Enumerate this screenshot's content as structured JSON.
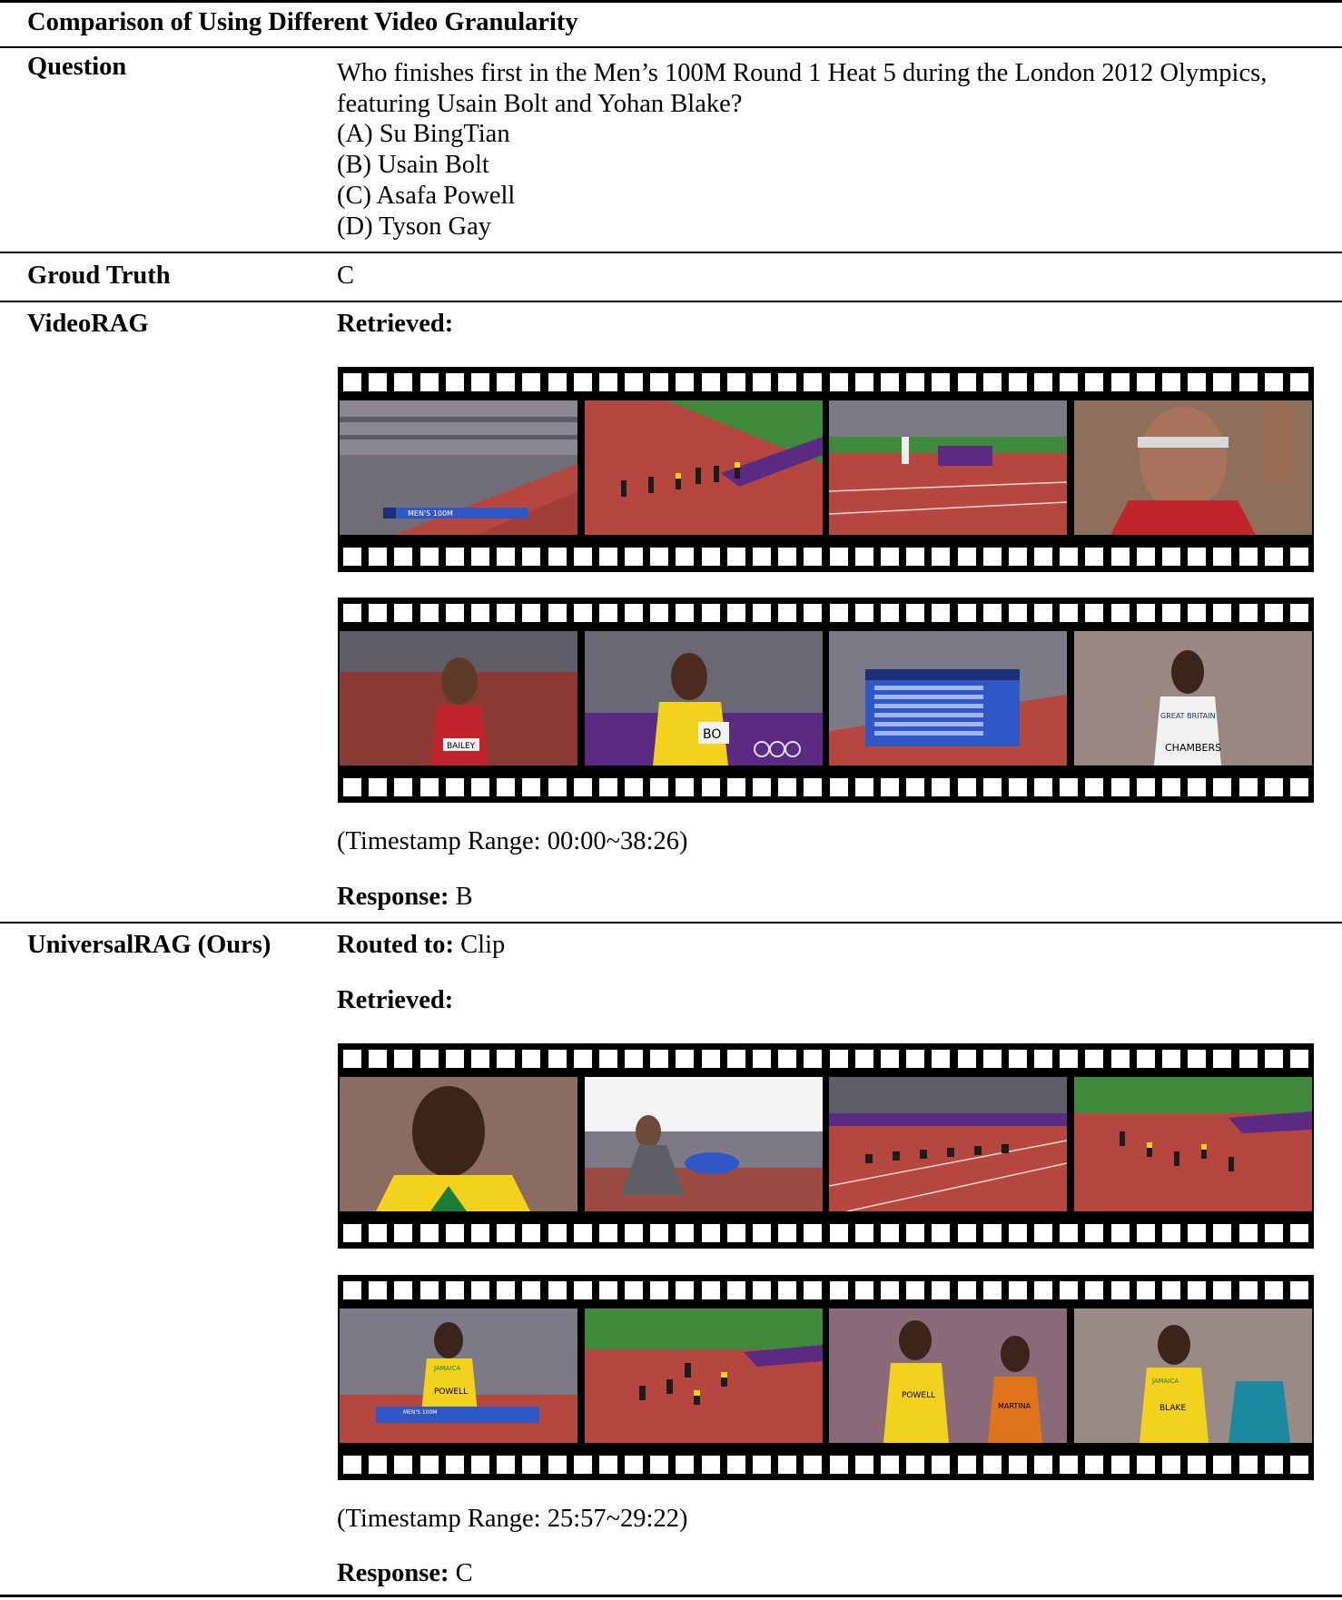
{
  "caption": "Comparison of Using Different Video Granularity",
  "question": {
    "label": "Question",
    "lines": [
      "Who finishes first in the Men’s 100M Round 1 Heat 5 during the London 2012 Olympics,",
      "featuring Usain Bolt and Yohan Blake?",
      "(A) Su BingTian",
      "(B) Usain Bolt",
      "(C) Asafa Powell",
      "(D) Tyson Gay"
    ]
  },
  "ground_truth": {
    "label": "Groud Truth",
    "value": "C"
  },
  "videorag": {
    "label": "VideoRAG",
    "retrieved_label": "Retrieved:",
    "timestamp": "(Timestamp Range: 00:00~38:26)",
    "response_label": "Response:",
    "response_value": "B"
  },
  "universalrag": {
    "label": "UniversalRAG (Ours)",
    "routed_label": "Routed to:",
    "routed_value": "Clip",
    "retrieved_label": "Retrieved:",
    "timestamp": "(Timestamp Range: 25:57~29:22)",
    "response_label": "Response:",
    "response_value": "C"
  },
  "frame_text": {
    "graphic_title": "MEN'S 100M",
    "athletes": [
      "BAILEY",
      "BO",
      "GREAT BRITAIN",
      "CHAMBERS",
      "JAMAICA",
      "POWELL",
      "MARTINA",
      "BLAKE"
    ]
  },
  "colors": {
    "track": "#b5473f",
    "stands": "#7c7a86",
    "grass": "#3f8a3a",
    "graphic": "#2f58c6",
    "jamaica_yellow": "#f2d21c"
  }
}
